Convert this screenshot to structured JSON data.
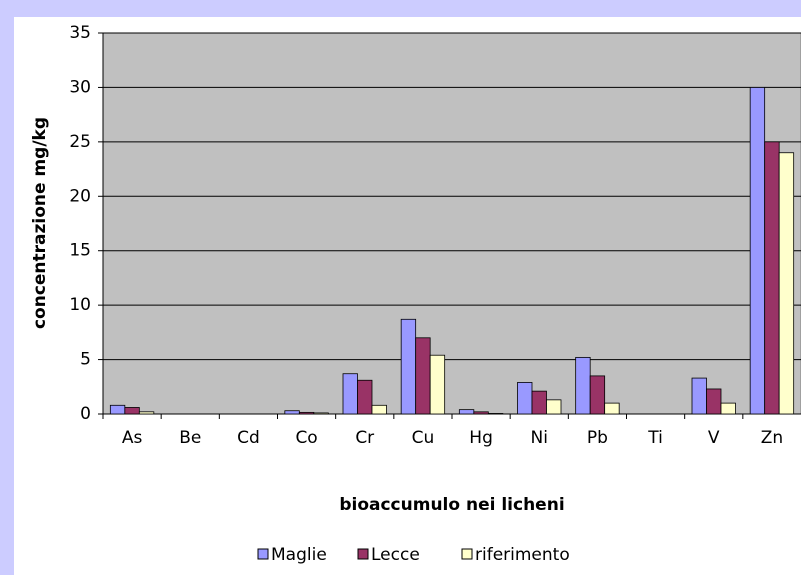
{
  "chart_data": {
    "type": "bar",
    "ylabel": "concentrazione mg/kg",
    "xlabel": "bioaccumulo nei licheni",
    "categories": [
      "As",
      "Be",
      "Cd",
      "Co",
      "Cr",
      "Cu",
      "Hg",
      "Ni",
      "Pb",
      "Ti",
      "V",
      "Zn"
    ],
    "series": [
      {
        "name": "Maglie",
        "color": "#9999ff",
        "values": [
          0.8,
          0,
          0,
          0.3,
          3.7,
          8.7,
          0.4,
          2.9,
          5.2,
          0,
          3.3,
          30
        ]
      },
      {
        "name": "Lecce",
        "color": "#993366",
        "values": [
          0.6,
          0,
          0,
          0.15,
          3.1,
          7.0,
          0.2,
          2.1,
          3.5,
          0,
          2.3,
          25
        ]
      },
      {
        "name": "riferimento",
        "color": "#ffffcc",
        "values": [
          0.2,
          0,
          0,
          0.1,
          0.8,
          5.4,
          0.05,
          1.3,
          1.0,
          0,
          1.0,
          24
        ]
      }
    ],
    "ylim": [
      0,
      35
    ],
    "yticks": [
      0,
      5,
      10,
      15,
      20,
      25,
      30,
      35
    ],
    "grid": true,
    "plot_background": "#c0c0c0",
    "legend": "bottom"
  }
}
